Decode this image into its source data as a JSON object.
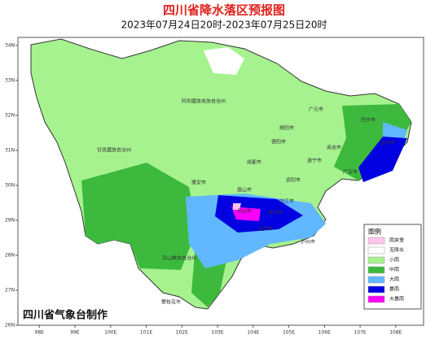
{
  "header": {
    "title": "四川省降水落区预报图",
    "subtitle": "2023年07月24日20时-2023年07月25日20时"
  },
  "map": {
    "lat_range": [
      26,
      34.23
    ],
    "lon_range": [
      97.4,
      108.78
    ],
    "lat_ticks": [
      {
        "value": 34,
        "label": "34N"
      },
      {
        "value": 33,
        "label": "33N"
      },
      {
        "value": 32,
        "label": "32N"
      },
      {
        "value": 31,
        "label": "31N"
      },
      {
        "value": 30,
        "label": "30N"
      },
      {
        "value": 29,
        "label": "29N"
      },
      {
        "value": 28,
        "label": "28N"
      },
      {
        "value": 27,
        "label": "27N"
      },
      {
        "value": 26,
        "label": "26N"
      }
    ],
    "lon_ticks": [
      {
        "value": 98,
        "label": "98E"
      },
      {
        "value": 99,
        "label": "99E"
      },
      {
        "value": 100,
        "label": "100E"
      },
      {
        "value": 101,
        "label": "101E"
      },
      {
        "value": 102,
        "label": "102E"
      },
      {
        "value": 103,
        "label": "103E"
      },
      {
        "value": 104,
        "label": "104E"
      },
      {
        "value": 105,
        "label": "105E"
      },
      {
        "value": 106,
        "label": "106E"
      },
      {
        "value": 107,
        "label": "107E"
      },
      {
        "value": 108,
        "label": "108E"
      }
    ],
    "places": [
      "广元市",
      "巴中市",
      "达州市",
      "绵阳市",
      "南充市",
      "德阳市",
      "遂宁市",
      "成都市",
      "广安市",
      "资阳市",
      "内江市",
      "眉山市",
      "乐山市",
      "雅安市",
      "自贡市",
      "宜宾市",
      "泸州市",
      "阿坝藏族羌族自治州",
      "甘孜藏族自治州",
      "凉山彝族自治州",
      "攀枝花市"
    ]
  },
  "legend": {
    "title": "图例",
    "items": [
      {
        "label": "雨夹雪",
        "color": "#ffc6ee"
      },
      {
        "label": "无降水",
        "color": "#ffffff"
      },
      {
        "label": "小雨",
        "color": "#a6f28f"
      },
      {
        "label": "中雨",
        "color": "#3dba3d"
      },
      {
        "label": "大雨",
        "color": "#61b8ff"
      },
      {
        "label": "暴雨",
        "color": "#0000e1"
      },
      {
        "label": "大暴雨",
        "color": "#fa00fa"
      }
    ]
  },
  "footer": "四川省气象台制作"
}
